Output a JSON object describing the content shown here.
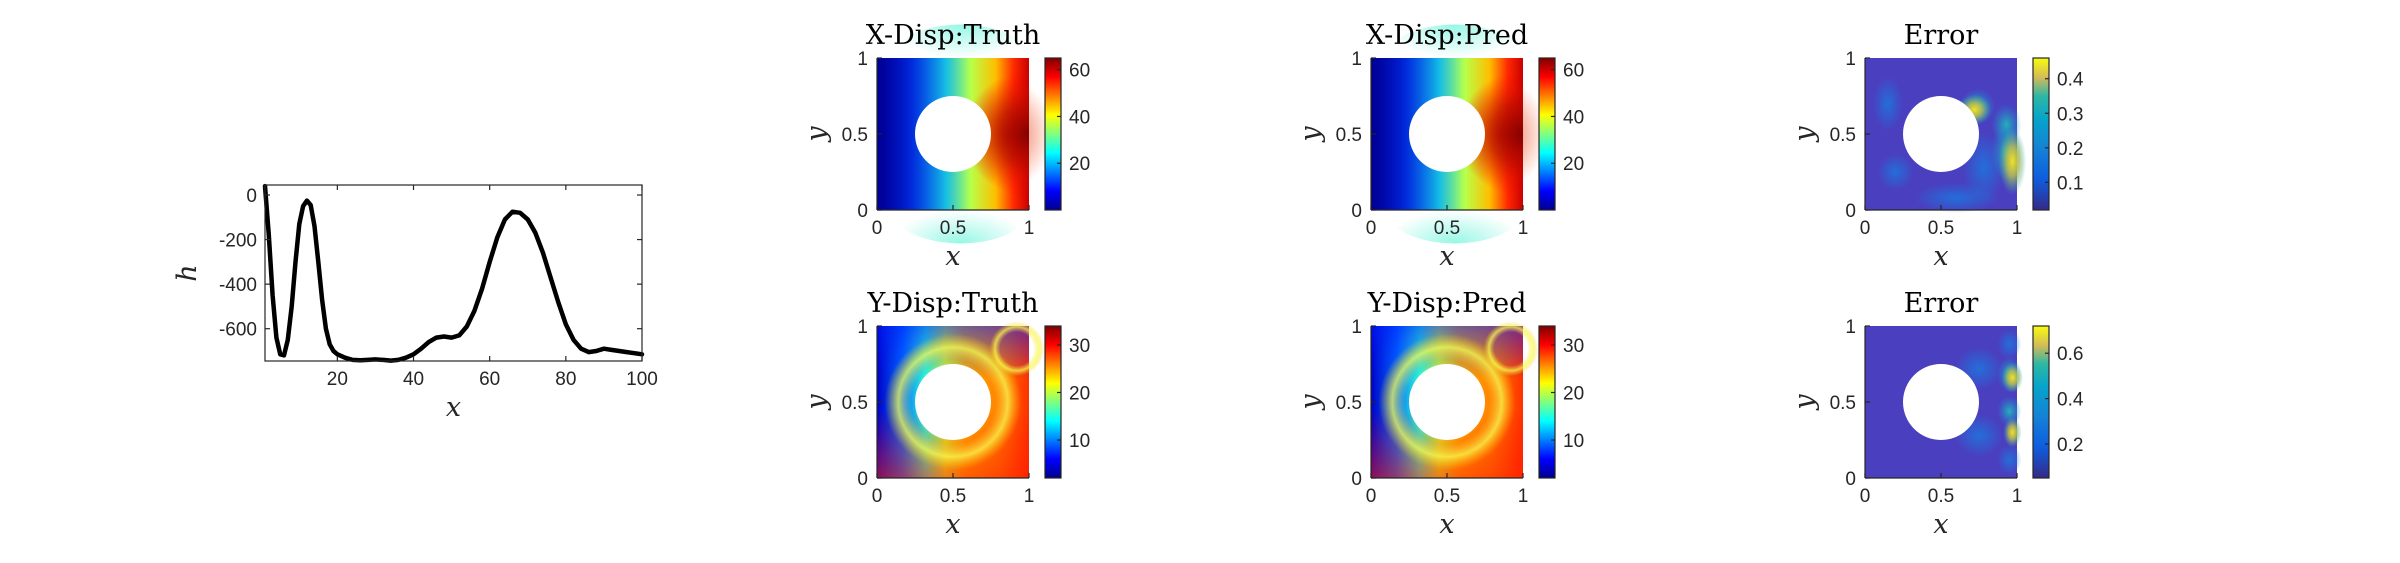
{
  "chart_data": [
    {
      "type": "line",
      "title": "",
      "xlabel": "x",
      "ylabel": "h",
      "xlim": [
        1,
        100
      ],
      "ylim": [
        -745,
        45
      ],
      "xticks": [
        "20",
        "40",
        "60",
        "80",
        "100"
      ],
      "yticks": [
        "0",
        "-200",
        "-400",
        "-600"
      ],
      "grid": false,
      "series": [
        {
          "color": "#000000",
          "x": [
            1,
            2,
            3,
            4,
            5,
            6,
            7,
            8,
            9,
            10,
            11,
            12,
            13,
            14,
            15,
            16,
            17,
            18,
            19,
            20,
            22,
            24,
            26,
            28,
            30,
            32,
            34,
            36,
            38,
            40,
            42,
            44,
            46,
            48,
            50,
            52,
            54,
            56,
            58,
            60,
            62,
            64,
            66,
            68,
            70,
            72,
            74,
            76,
            78,
            80,
            82,
            84,
            86,
            88,
            90,
            92,
            94,
            96,
            98,
            100
          ],
          "y": [
            40,
            -180,
            -450,
            -640,
            -715,
            -720,
            -650,
            -500,
            -300,
            -130,
            -50,
            -25,
            -45,
            -140,
            -300,
            -470,
            -600,
            -670,
            -700,
            -715,
            -730,
            -740,
            -742,
            -740,
            -738,
            -740,
            -743,
            -740,
            -730,
            -715,
            -690,
            -660,
            -640,
            -635,
            -640,
            -630,
            -590,
            -520,
            -420,
            -300,
            -190,
            -110,
            -75,
            -80,
            -110,
            -170,
            -260,
            -370,
            -480,
            -580,
            -650,
            -690,
            -705,
            -700,
            -690,
            -695,
            -700,
            -705,
            -710,
            -715
          ]
        }
      ]
    },
    {
      "type": "heatmap",
      "title": "X-Disp:Truth",
      "xlabel": "x",
      "ylabel": "y",
      "xlim": [
        0,
        1
      ],
      "ylim": [
        0,
        1
      ],
      "xticks": [
        "0",
        "0.5",
        "1"
      ],
      "yticks": [
        "0",
        "0.5",
        "1"
      ],
      "colormap": "jet",
      "clim": [
        0,
        65
      ],
      "colorbar_ticks": [
        "20",
        "40",
        "60"
      ],
      "hole": {
        "center": [
          0.5,
          0.5
        ],
        "radius": 0.25
      }
    },
    {
      "type": "heatmap",
      "title": "X-Disp:Pred",
      "xlabel": "x",
      "ylabel": "y",
      "xlim": [
        0,
        1
      ],
      "ylim": [
        0,
        1
      ],
      "xticks": [
        "0",
        "0.5",
        "1"
      ],
      "yticks": [
        "0",
        "0.5",
        "1"
      ],
      "colormap": "jet",
      "clim": [
        0,
        65
      ],
      "colorbar_ticks": [
        "20",
        "40",
        "60"
      ],
      "hole": {
        "center": [
          0.5,
          0.5
        ],
        "radius": 0.25
      }
    },
    {
      "type": "heatmap",
      "title": "Error",
      "xlabel": "x",
      "ylabel": "y",
      "xlim": [
        0,
        1
      ],
      "ylim": [
        0,
        1
      ],
      "xticks": [
        "0",
        "0.5",
        "1"
      ],
      "yticks": [
        "0",
        "0.5",
        "1"
      ],
      "colormap": "parula",
      "clim": [
        0.02,
        0.46
      ],
      "colorbar_ticks": [
        "0.1",
        "0.2",
        "0.3",
        "0.4"
      ],
      "hole": {
        "center": [
          0.5,
          0.5
        ],
        "radius": 0.25
      }
    },
    {
      "type": "heatmap",
      "title": "Y-Disp:Truth",
      "xlabel": "x",
      "ylabel": "y",
      "xlim": [
        0,
        1
      ],
      "ylim": [
        0,
        1
      ],
      "xticks": [
        "0",
        "0.5",
        "1"
      ],
      "yticks": [
        "0",
        "0.5",
        "1"
      ],
      "colormap": "jet",
      "clim": [
        2,
        34
      ],
      "colorbar_ticks": [
        "10",
        "20",
        "30"
      ],
      "hole": {
        "center": [
          0.5,
          0.5
        ],
        "radius": 0.25
      }
    },
    {
      "type": "heatmap",
      "title": "Y-Disp:Pred",
      "xlabel": "x",
      "ylabel": "y",
      "xlim": [
        0,
        1
      ],
      "ylim": [
        0,
        1
      ],
      "xticks": [
        "0",
        "0.5",
        "1"
      ],
      "yticks": [
        "0",
        "0.5",
        "1"
      ],
      "colormap": "jet",
      "clim": [
        2,
        34
      ],
      "colorbar_ticks": [
        "10",
        "20",
        "30"
      ],
      "hole": {
        "center": [
          0.5,
          0.5
        ],
        "radius": 0.25
      }
    },
    {
      "type": "heatmap",
      "title": "Error",
      "xlabel": "x",
      "ylabel": "y",
      "xlim": [
        0,
        1
      ],
      "ylim": [
        0,
        1
      ],
      "xticks": [
        "0",
        "0.5",
        "1"
      ],
      "yticks": [
        "0",
        "0.5",
        "1"
      ],
      "colormap": "parula",
      "clim": [
        0.05,
        0.72
      ],
      "colorbar_ticks": [
        "0.2",
        "0.4",
        "0.6"
      ],
      "hole": {
        "center": [
          0.5,
          0.5
        ],
        "radius": 0.25
      }
    }
  ]
}
